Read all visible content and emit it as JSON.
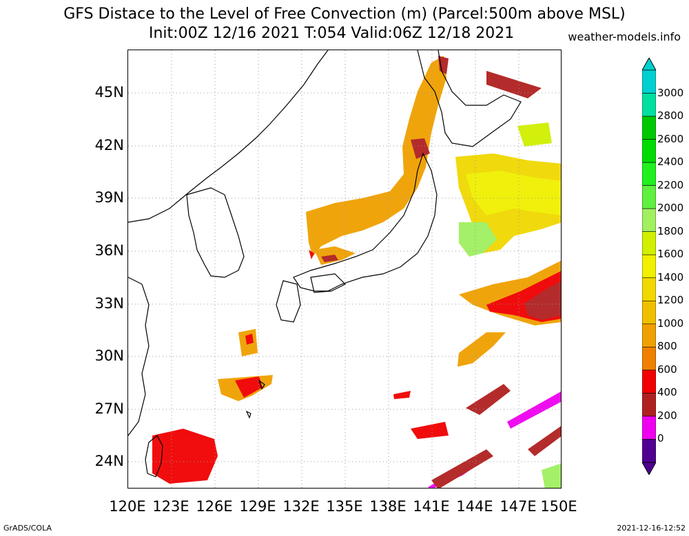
{
  "title": "GFS Distace to the Level of Free Convection (m) (Parcel:500m above MSL)",
  "subtitle": "Init:00Z 12/16 2021 T:054 Valid:06Z 12/18 2021",
  "site": "weather-models.info",
  "footer_left": "GrADS/COLA",
  "footer_right": "2021-12-16-12:52",
  "lat_labels": [
    "45N",
    "42N",
    "39N",
    "36N",
    "33N",
    "30N",
    "27N",
    "24N"
  ],
  "lon_labels": [
    "120E",
    "123E",
    "126E",
    "129E",
    "132E",
    "135E",
    "138E",
    "141E",
    "144E",
    "147E",
    "150E"
  ],
  "colorbar": {
    "labels": [
      "3000",
      "2800",
      "2600",
      "2400",
      "2200",
      "2000",
      "1800",
      "1600",
      "1400",
      "1200",
      "1000",
      "800",
      "600",
      "400",
      "200",
      "0"
    ],
    "colors": [
      "#00d0d0",
      "#00e0a0",
      "#00c800",
      "#00dc00",
      "#20f020",
      "#60f040",
      "#a0f060",
      "#d0f000",
      "#f0f000",
      "#f0d800",
      "#f0c000",
      "#f0a000",
      "#f08000",
      "#f00000",
      "#b02020",
      "#f000f0",
      "#500090"
    ]
  }
}
